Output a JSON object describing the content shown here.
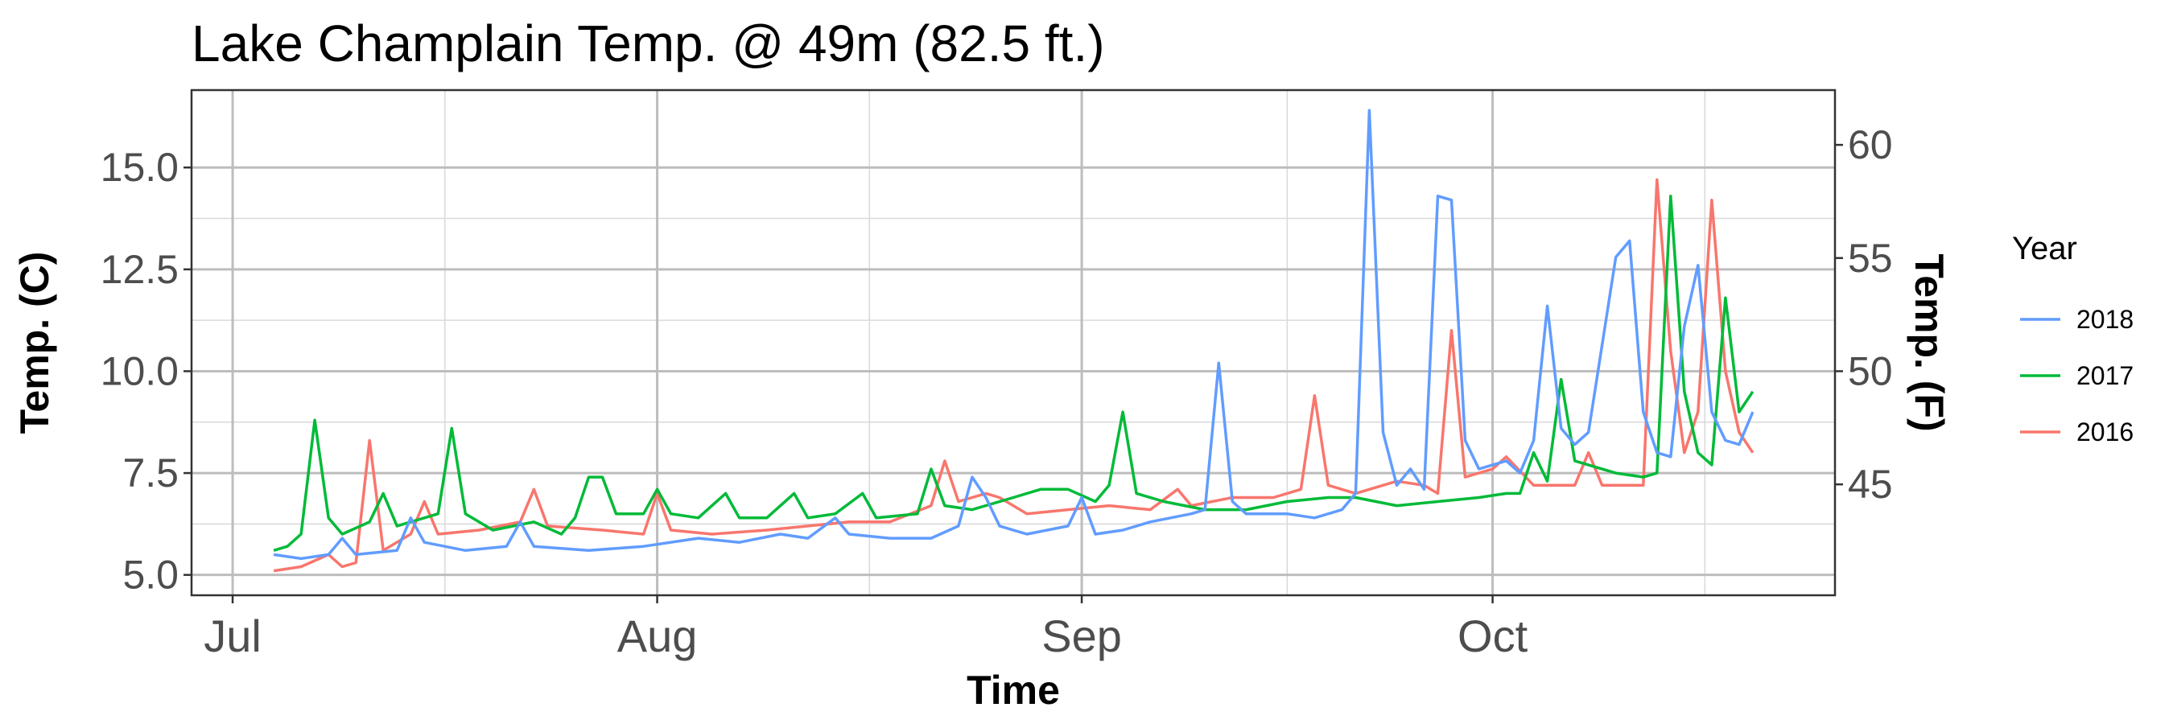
{
  "chart_data": {
    "type": "line",
    "title": "Lake Champlain Temp. @ 49m (82.5 ft.)",
    "xlabel": "Time",
    "ylabel": "Temp. (C)",
    "y2label": "Temp. (F)",
    "x_axis": {
      "type": "date",
      "range": [
        "2016-06-28",
        "2016-10-26"
      ],
      "ticks": [
        {
          "date": "2016-07-01",
          "label": "Jul"
        },
        {
          "date": "2016-08-01",
          "label": "Aug"
        },
        {
          "date": "2016-09-01",
          "label": "Sep"
        },
        {
          "date": "2016-10-01",
          "label": "Oct"
        }
      ]
    },
    "ylim": [
      4.5,
      16.9
    ],
    "y_ticks": [
      "5.0",
      "7.5",
      "10.0",
      "12.5",
      "15.0"
    ],
    "y2_ticks": [
      "45",
      "50",
      "55",
      "60"
    ],
    "grid": true,
    "legend": {
      "title": "Year",
      "placement": "right"
    },
    "series": [
      {
        "name": "2018",
        "color": "#619CFF",
        "points": [
          [
            "2016-07-04",
            5.5
          ],
          [
            "2016-07-06",
            5.4
          ],
          [
            "2016-07-08",
            5.5
          ],
          [
            "2016-07-09",
            5.9
          ],
          [
            "2016-07-10",
            5.5
          ],
          [
            "2016-07-13",
            5.6
          ],
          [
            "2016-07-14",
            6.4
          ],
          [
            "2016-07-15",
            5.8
          ],
          [
            "2016-07-18",
            5.6
          ],
          [
            "2016-07-21",
            5.7
          ],
          [
            "2016-07-22",
            6.3
          ],
          [
            "2016-07-23",
            5.7
          ],
          [
            "2016-07-27",
            5.6
          ],
          [
            "2016-07-31",
            5.7
          ],
          [
            "2016-08-04",
            5.9
          ],
          [
            "2016-08-07",
            5.8
          ],
          [
            "2016-08-10",
            6.0
          ],
          [
            "2016-08-12",
            5.9
          ],
          [
            "2016-08-14",
            6.4
          ],
          [
            "2016-08-15",
            6.0
          ],
          [
            "2016-08-18",
            5.9
          ],
          [
            "2016-08-21",
            5.9
          ],
          [
            "2016-08-23",
            6.2
          ],
          [
            "2016-08-24",
            7.4
          ],
          [
            "2016-08-25",
            6.9
          ],
          [
            "2016-08-26",
            6.2
          ],
          [
            "2016-08-28",
            6.0
          ],
          [
            "2016-08-31",
            6.2
          ],
          [
            "2016-09-01",
            6.9
          ],
          [
            "2016-09-02",
            6.0
          ],
          [
            "2016-09-04",
            6.1
          ],
          [
            "2016-09-06",
            6.3
          ],
          [
            "2016-09-09",
            6.5
          ],
          [
            "2016-09-10",
            6.6
          ],
          [
            "2016-09-11",
            10.2
          ],
          [
            "2016-09-12",
            6.8
          ],
          [
            "2016-09-13",
            6.5
          ],
          [
            "2016-09-16",
            6.5
          ],
          [
            "2016-09-18",
            6.4
          ],
          [
            "2016-09-20",
            6.6
          ],
          [
            "2016-09-21",
            7.0
          ],
          [
            "2016-09-22",
            16.4
          ],
          [
            "2016-09-23",
            8.5
          ],
          [
            "2016-09-24",
            7.2
          ],
          [
            "2016-09-25",
            7.6
          ],
          [
            "2016-09-26",
            7.1
          ],
          [
            "2016-09-27",
            14.3
          ],
          [
            "2016-09-28",
            14.2
          ],
          [
            "2016-09-29",
            8.3
          ],
          [
            "2016-09-30",
            7.6
          ],
          [
            "2016-10-02",
            7.8
          ],
          [
            "2016-10-03",
            7.5
          ],
          [
            "2016-10-04",
            8.3
          ],
          [
            "2016-10-05",
            11.6
          ],
          [
            "2016-10-06",
            8.6
          ],
          [
            "2016-10-07",
            8.2
          ],
          [
            "2016-10-08",
            8.5
          ],
          [
            "2016-10-10",
            12.8
          ],
          [
            "2016-10-11",
            13.2
          ],
          [
            "2016-10-12",
            9.0
          ],
          [
            "2016-10-13",
            8.0
          ],
          [
            "2016-10-14",
            7.9
          ],
          [
            "2016-10-15",
            11.1
          ],
          [
            "2016-10-16",
            12.6
          ],
          [
            "2016-10-17",
            9.0
          ],
          [
            "2016-10-18",
            8.3
          ],
          [
            "2016-10-19",
            8.2
          ],
          [
            "2016-10-20",
            9.0
          ]
        ]
      },
      {
        "name": "2017",
        "color": "#00BA38",
        "points": [
          [
            "2016-07-04",
            5.6
          ],
          [
            "2016-07-05",
            5.7
          ],
          [
            "2016-07-06",
            6.0
          ],
          [
            "2016-07-07",
            8.8
          ],
          [
            "2016-07-08",
            6.4
          ],
          [
            "2016-07-09",
            6.0
          ],
          [
            "2016-07-11",
            6.3
          ],
          [
            "2016-07-12",
            7.0
          ],
          [
            "2016-07-13",
            6.2
          ],
          [
            "2016-07-16",
            6.5
          ],
          [
            "2016-07-17",
            8.6
          ],
          [
            "2016-07-18",
            6.5
          ],
          [
            "2016-07-20",
            6.1
          ],
          [
            "2016-07-23",
            6.3
          ],
          [
            "2016-07-25",
            6.0
          ],
          [
            "2016-07-26",
            6.4
          ],
          [
            "2016-07-27",
            7.4
          ],
          [
            "2016-07-28",
            7.4
          ],
          [
            "2016-07-29",
            6.5
          ],
          [
            "2016-07-31",
            6.5
          ],
          [
            "2016-08-01",
            7.1
          ],
          [
            "2016-08-02",
            6.5
          ],
          [
            "2016-08-04",
            6.4
          ],
          [
            "2016-08-06",
            7.0
          ],
          [
            "2016-08-07",
            6.4
          ],
          [
            "2016-08-09",
            6.4
          ],
          [
            "2016-08-11",
            7.0
          ],
          [
            "2016-08-12",
            6.4
          ],
          [
            "2016-08-14",
            6.5
          ],
          [
            "2016-08-16",
            7.0
          ],
          [
            "2016-08-17",
            6.4
          ],
          [
            "2016-08-20",
            6.5
          ],
          [
            "2016-08-21",
            7.6
          ],
          [
            "2016-08-22",
            6.7
          ],
          [
            "2016-08-24",
            6.6
          ],
          [
            "2016-08-27",
            6.9
          ],
          [
            "2016-08-29",
            7.1
          ],
          [
            "2016-08-31",
            7.1
          ],
          [
            "2016-09-02",
            6.8
          ],
          [
            "2016-09-03",
            7.2
          ],
          [
            "2016-09-04",
            9.0
          ],
          [
            "2016-09-05",
            7.0
          ],
          [
            "2016-09-07",
            6.8
          ],
          [
            "2016-09-10",
            6.6
          ],
          [
            "2016-09-13",
            6.6
          ],
          [
            "2016-09-16",
            6.8
          ],
          [
            "2016-09-19",
            6.9
          ],
          [
            "2016-09-21",
            6.9
          ],
          [
            "2016-09-24",
            6.7
          ],
          [
            "2016-09-27",
            6.8
          ],
          [
            "2016-09-30",
            6.9
          ],
          [
            "2016-10-02",
            7.0
          ],
          [
            "2016-10-03",
            7.0
          ],
          [
            "2016-10-04",
            8.0
          ],
          [
            "2016-10-05",
            7.3
          ],
          [
            "2016-10-06",
            9.8
          ],
          [
            "2016-10-07",
            7.8
          ],
          [
            "2016-10-10",
            7.5
          ],
          [
            "2016-10-12",
            7.4
          ],
          [
            "2016-10-13",
            7.5
          ],
          [
            "2016-10-14",
            14.3
          ],
          [
            "2016-10-15",
            9.5
          ],
          [
            "2016-10-16",
            8.0
          ],
          [
            "2016-10-17",
            7.7
          ],
          [
            "2016-10-18",
            11.8
          ],
          [
            "2016-10-19",
            9.0
          ],
          [
            "2016-10-20",
            9.5
          ]
        ]
      },
      {
        "name": "2016",
        "color": "#F8766D",
        "points": [
          [
            "2016-07-04",
            5.1
          ],
          [
            "2016-07-06",
            5.2
          ],
          [
            "2016-07-08",
            5.5
          ],
          [
            "2016-07-09",
            5.2
          ],
          [
            "2016-07-10",
            5.3
          ],
          [
            "2016-07-11",
            8.3
          ],
          [
            "2016-07-12",
            5.6
          ],
          [
            "2016-07-14",
            6.0
          ],
          [
            "2016-07-15",
            6.8
          ],
          [
            "2016-07-16",
            6.0
          ],
          [
            "2016-07-19",
            6.1
          ],
          [
            "2016-07-22",
            6.3
          ],
          [
            "2016-07-23",
            7.1
          ],
          [
            "2016-07-24",
            6.2
          ],
          [
            "2016-07-28",
            6.1
          ],
          [
            "2016-07-31",
            6.0
          ],
          [
            "2016-08-01",
            7.0
          ],
          [
            "2016-08-02",
            6.1
          ],
          [
            "2016-08-05",
            6.0
          ],
          [
            "2016-08-09",
            6.1
          ],
          [
            "2016-08-12",
            6.2
          ],
          [
            "2016-08-15",
            6.3
          ],
          [
            "2016-08-18",
            6.3
          ],
          [
            "2016-08-21",
            6.7
          ],
          [
            "2016-08-22",
            7.8
          ],
          [
            "2016-08-23",
            6.8
          ],
          [
            "2016-08-25",
            7.0
          ],
          [
            "2016-08-26",
            6.9
          ],
          [
            "2016-08-28",
            6.5
          ],
          [
            "2016-08-31",
            6.6
          ],
          [
            "2016-09-03",
            6.7
          ],
          [
            "2016-09-06",
            6.6
          ],
          [
            "2016-09-08",
            7.1
          ],
          [
            "2016-09-09",
            6.7
          ],
          [
            "2016-09-12",
            6.9
          ],
          [
            "2016-09-15",
            6.9
          ],
          [
            "2016-09-17",
            7.1
          ],
          [
            "2016-09-18",
            9.4
          ],
          [
            "2016-09-19",
            7.2
          ],
          [
            "2016-09-21",
            7.0
          ],
          [
            "2016-09-24",
            7.3
          ],
          [
            "2016-09-26",
            7.2
          ],
          [
            "2016-09-27",
            7.0
          ],
          [
            "2016-09-28",
            11.0
          ],
          [
            "2016-09-29",
            7.4
          ],
          [
            "2016-10-01",
            7.6
          ],
          [
            "2016-10-02",
            7.9
          ],
          [
            "2016-10-04",
            7.2
          ],
          [
            "2016-10-07",
            7.2
          ],
          [
            "2016-10-08",
            8.0
          ],
          [
            "2016-10-09",
            7.2
          ],
          [
            "2016-10-12",
            7.2
          ],
          [
            "2016-10-13",
            14.7
          ],
          [
            "2016-10-14",
            10.5
          ],
          [
            "2016-10-15",
            8.0
          ],
          [
            "2016-10-16",
            9.0
          ],
          [
            "2016-10-17",
            14.2
          ],
          [
            "2016-10-18",
            10.0
          ],
          [
            "2016-10-19",
            8.5
          ],
          [
            "2016-10-20",
            8.0
          ]
        ]
      }
    ]
  }
}
